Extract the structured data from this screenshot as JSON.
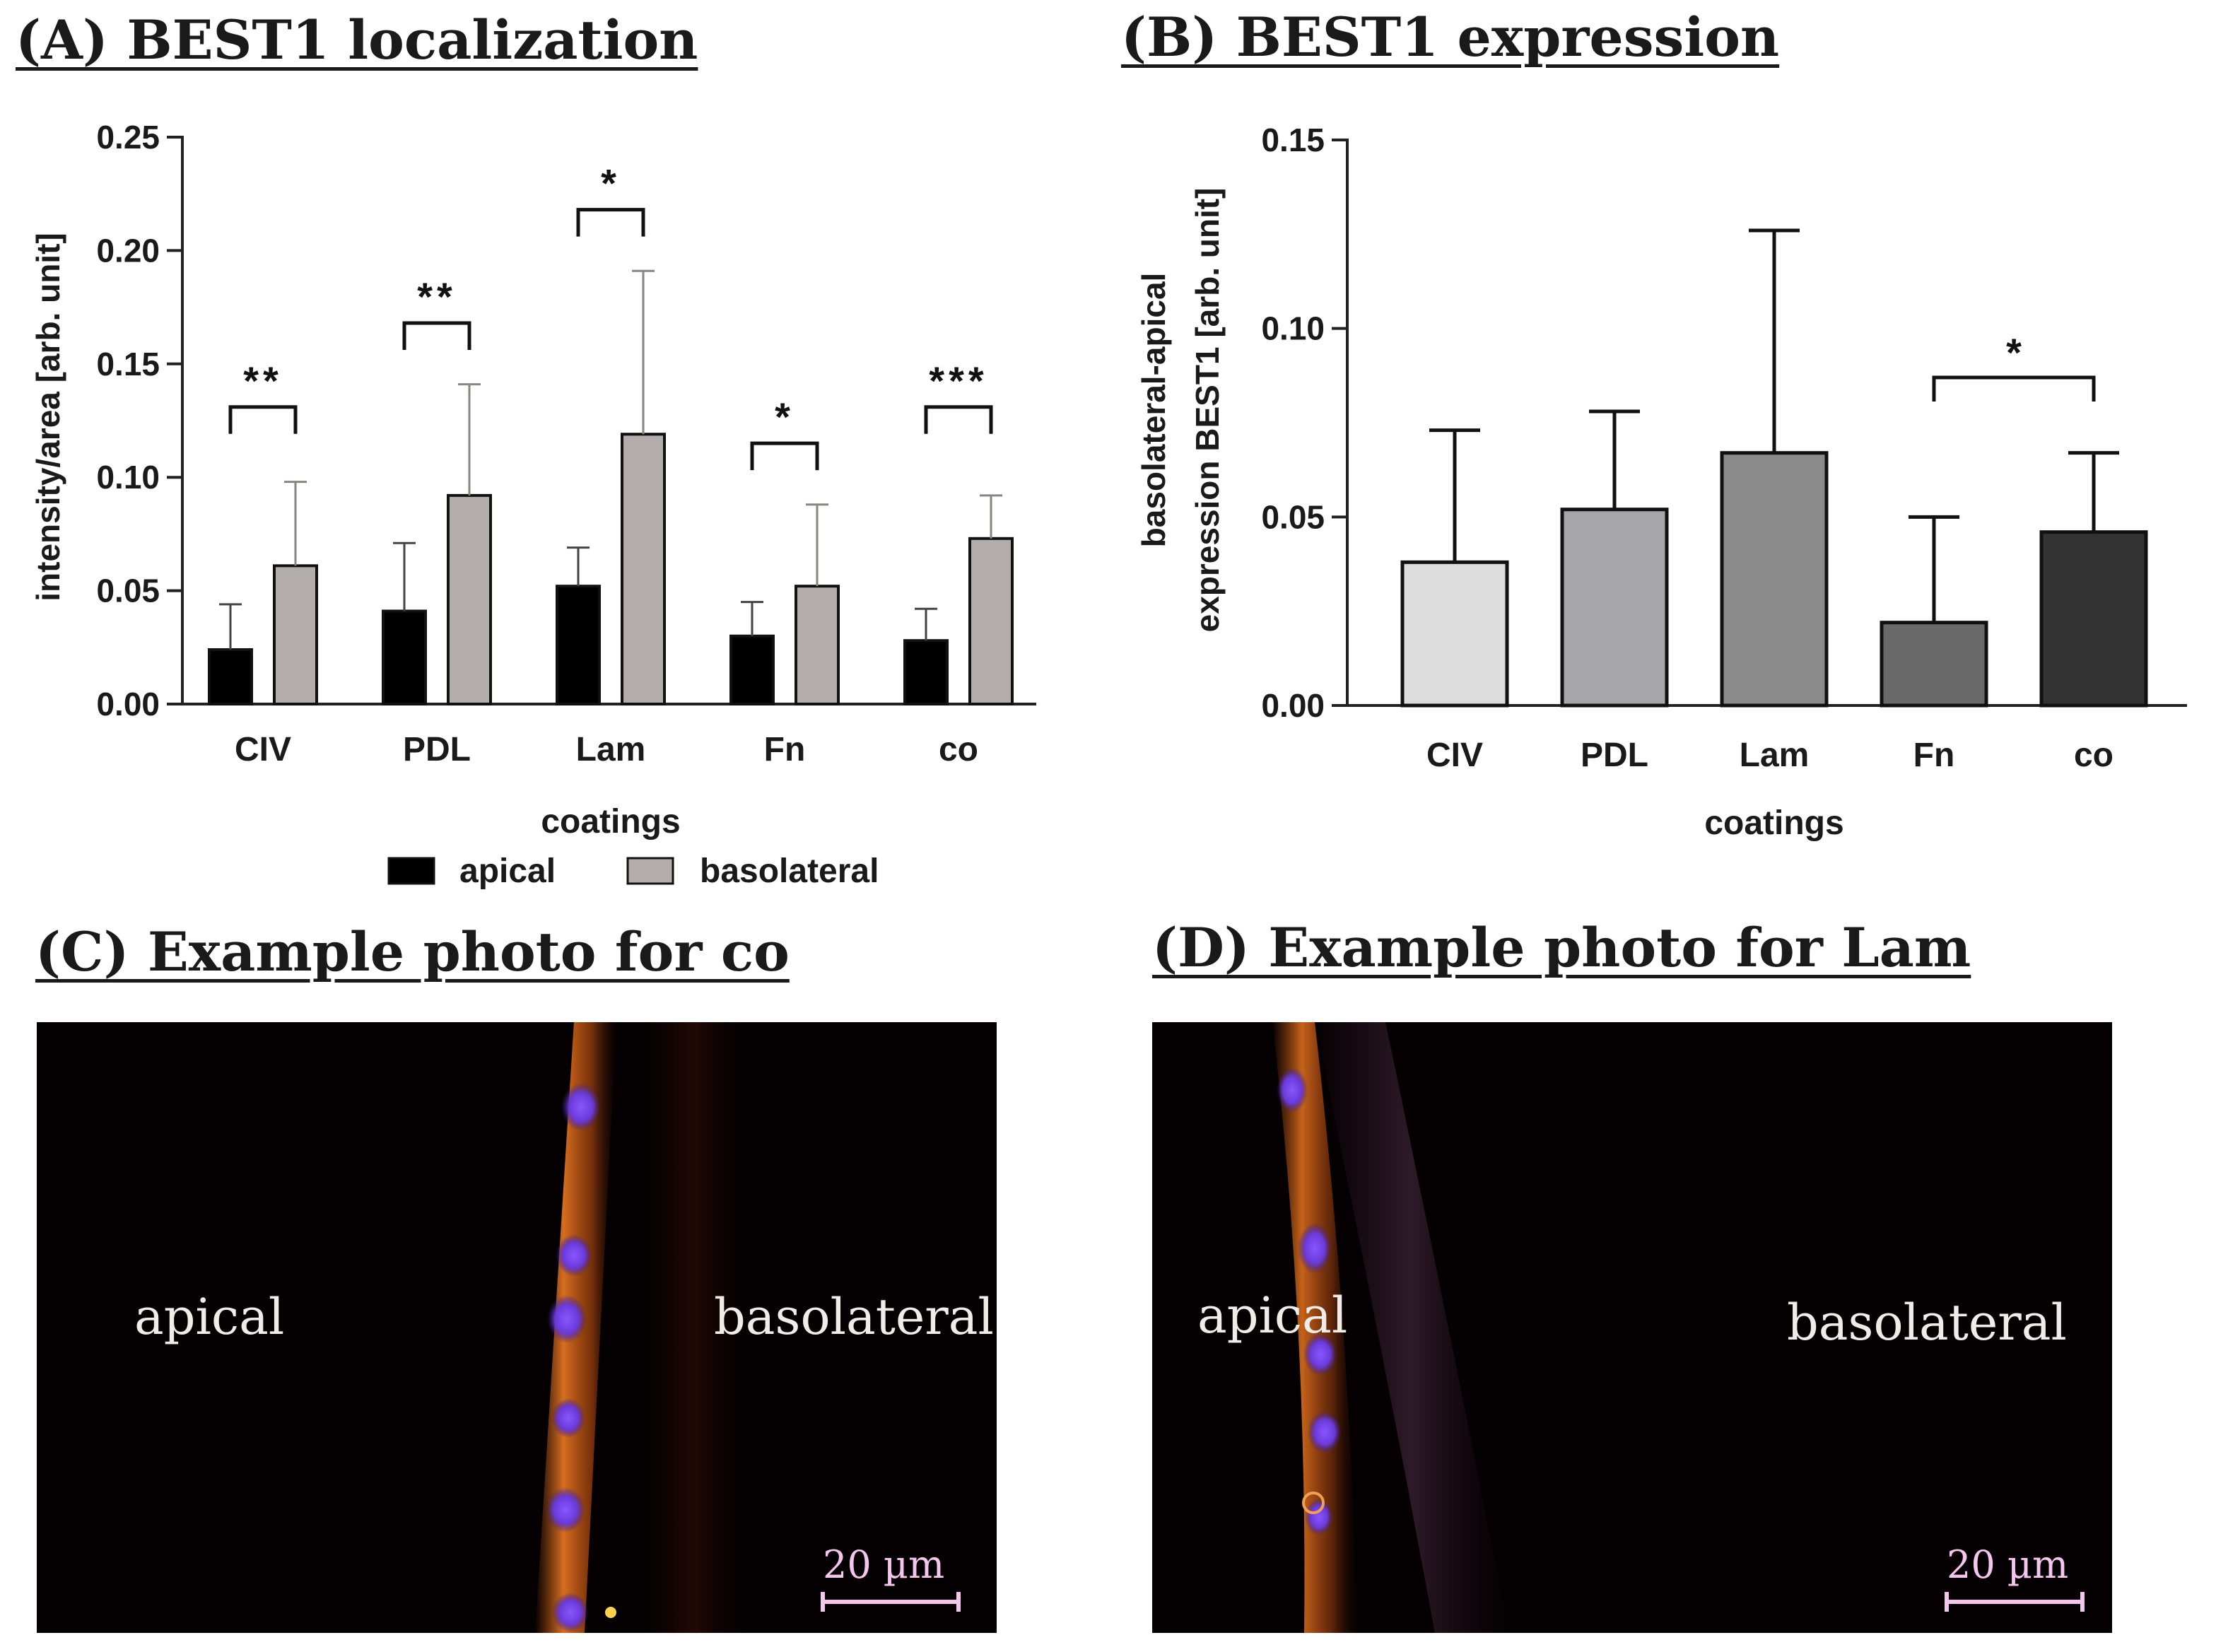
{
  "panels": {
    "a_title": "(A) BEST1 localization",
    "b_title": "(B) BEST1 expression",
    "c_title": "(C) Example photo for co",
    "d_title": "(D) Example photo for Lam"
  },
  "chart_data": [
    {
      "type": "bar",
      "title": "(A) BEST1 localization",
      "xlabel": "coatings",
      "ylabel": "intensity/area [arb. unit]",
      "categories": [
        "CIV",
        "PDL",
        "Lam",
        "Fn",
        "co"
      ],
      "ylim": [
        0,
        0.25
      ],
      "yticks": [
        "0.00",
        "0.05",
        "0.10",
        "0.15",
        "0.20",
        "0.25"
      ],
      "legend_position": "bottom",
      "grid": false,
      "series": [
        {
          "name": "apical",
          "color": "#000000",
          "values": [
            0.024,
            0.041,
            0.052,
            0.03,
            0.028
          ],
          "errors": [
            0.02,
            0.03,
            0.017,
            0.015,
            0.014
          ]
        },
        {
          "name": "basolateral",
          "color": "#b3aeab",
          "values": [
            0.061,
            0.092,
            0.119,
            0.052,
            0.073
          ],
          "errors": [
            0.037,
            0.049,
            0.072,
            0.036,
            0.019
          ]
        }
      ],
      "significance": [
        {
          "category": "CIV",
          "label": "**",
          "y": 0.131
        },
        {
          "category": "PDL",
          "label": "**",
          "y": 0.168
        },
        {
          "category": "Lam",
          "label": "*",
          "y": 0.218
        },
        {
          "category": "Fn",
          "label": "*",
          "y": 0.115
        },
        {
          "category": "co",
          "label": "***",
          "y": 0.131
        }
      ]
    },
    {
      "type": "bar",
      "title": "(B) BEST1 expression",
      "xlabel": "coatings",
      "ylabel": [
        "basolateral-apical",
        "expression  BEST1 [arb. unit]"
      ],
      "categories": [
        "CIV",
        "PDL",
        "Lam",
        "Fn",
        "co"
      ],
      "ylim": [
        0,
        0.15
      ],
      "yticks": [
        "0.00",
        "0.05",
        "0.10",
        "0.15"
      ],
      "grid": false,
      "colors": [
        "#dcdcdc",
        "#a6a6a8",
        "#8a8a8a",
        "#6a6a6a",
        "#333333"
      ],
      "values": [
        0.038,
        0.052,
        0.067,
        0.022,
        0.046
      ],
      "errors": [
        0.035,
        0.026,
        0.059,
        0.028,
        0.021
      ],
      "significance": [
        {
          "from": "Fn",
          "to": "co",
          "label": "*",
          "y": 0.087
        }
      ]
    }
  ],
  "photos": {
    "c": {
      "left_label": "apical",
      "right_label": "basolateral",
      "scale_label": "20 µm"
    },
    "d": {
      "left_label": "apical",
      "right_label": "basolateral",
      "scale_label": "20 µm"
    }
  }
}
